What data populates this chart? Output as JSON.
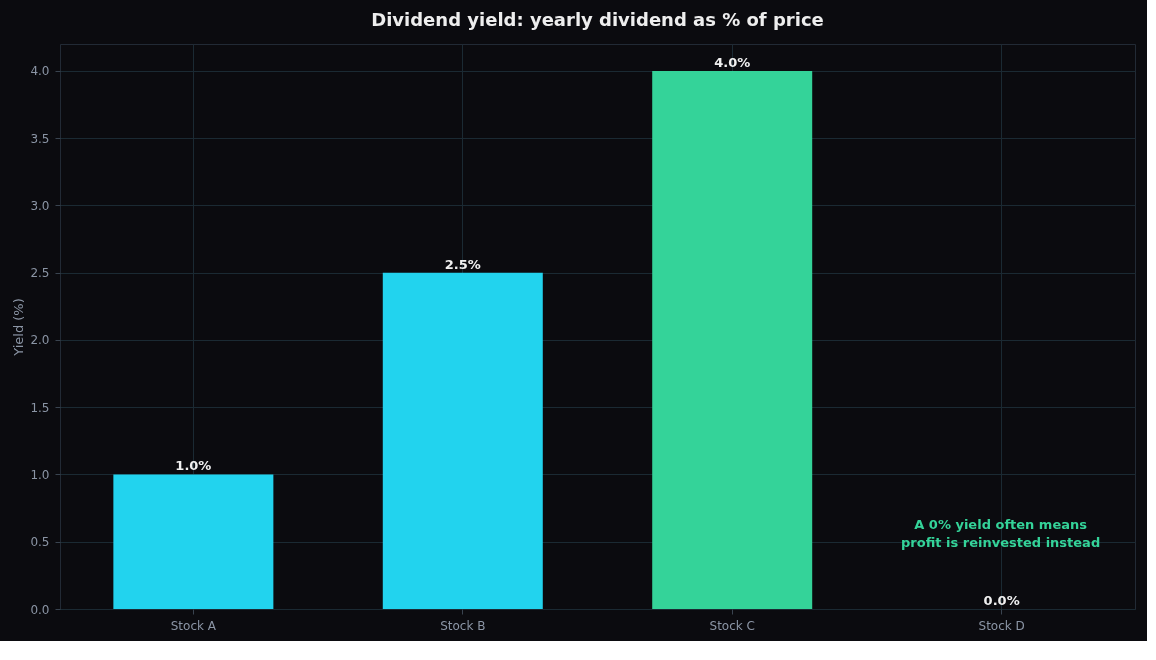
{
  "chart_data": {
    "type": "bar",
    "title": "Dividend yield: yearly dividend as % of price",
    "ylabel": "Yield (%)",
    "categories": [
      "Stock A",
      "Stock B",
      "Stock C",
      "Stock D"
    ],
    "values": [
      1.0,
      2.5,
      4.0,
      0.0
    ],
    "colors": [
      "#22d3ee",
      "#22d3ee",
      "#34d399",
      "#22d3ee"
    ],
    "value_labels": [
      "1.0%",
      "2.5%",
      "4.0%",
      "0.0%"
    ],
    "ylim": [
      0,
      4.2
    ],
    "yticks": [
      {
        "value": 0,
        "label": "0.0"
      },
      {
        "value": 0.5,
        "label": "0.5"
      },
      {
        "value": 1,
        "label": "1.0"
      },
      {
        "value": 1.5,
        "label": "1.5"
      },
      {
        "value": 2,
        "label": "2.0"
      },
      {
        "value": 2.5,
        "label": "2.5"
      },
      {
        "value": 3,
        "label": "3.0"
      },
      {
        "value": 3.5,
        "label": "3.5"
      },
      {
        "value": 4,
        "label": "4.0"
      }
    ],
    "grid": true,
    "annotations": [
      "A 0% yield often means profit is reinvested instead"
    ]
  }
}
